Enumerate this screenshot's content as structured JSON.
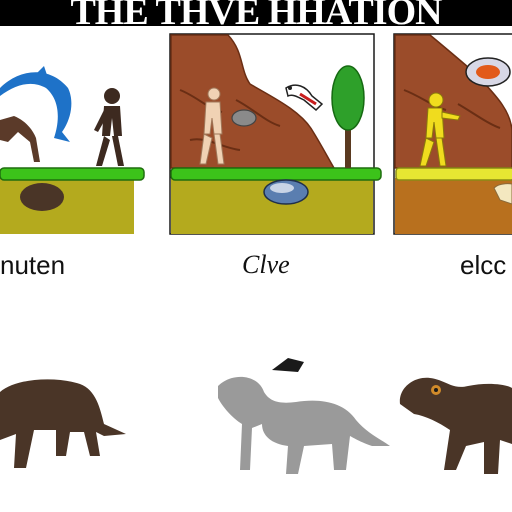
{
  "header": {
    "title": "THE THVE HHATION"
  },
  "captions": {
    "panel_1": "nuten",
    "panel_2": "Clve",
    "panel_3": "elcc"
  },
  "colors": {
    "title_bar": "#000000",
    "ground_grass": "#3cc31a",
    "soil": "#b4aa1e",
    "cliff": "#9b4c2a",
    "tree": "#2ea02a",
    "blue_fish": "#1e72c8",
    "dark_animal": "#4a3527",
    "gray_animal": "#9a9a9a"
  }
}
